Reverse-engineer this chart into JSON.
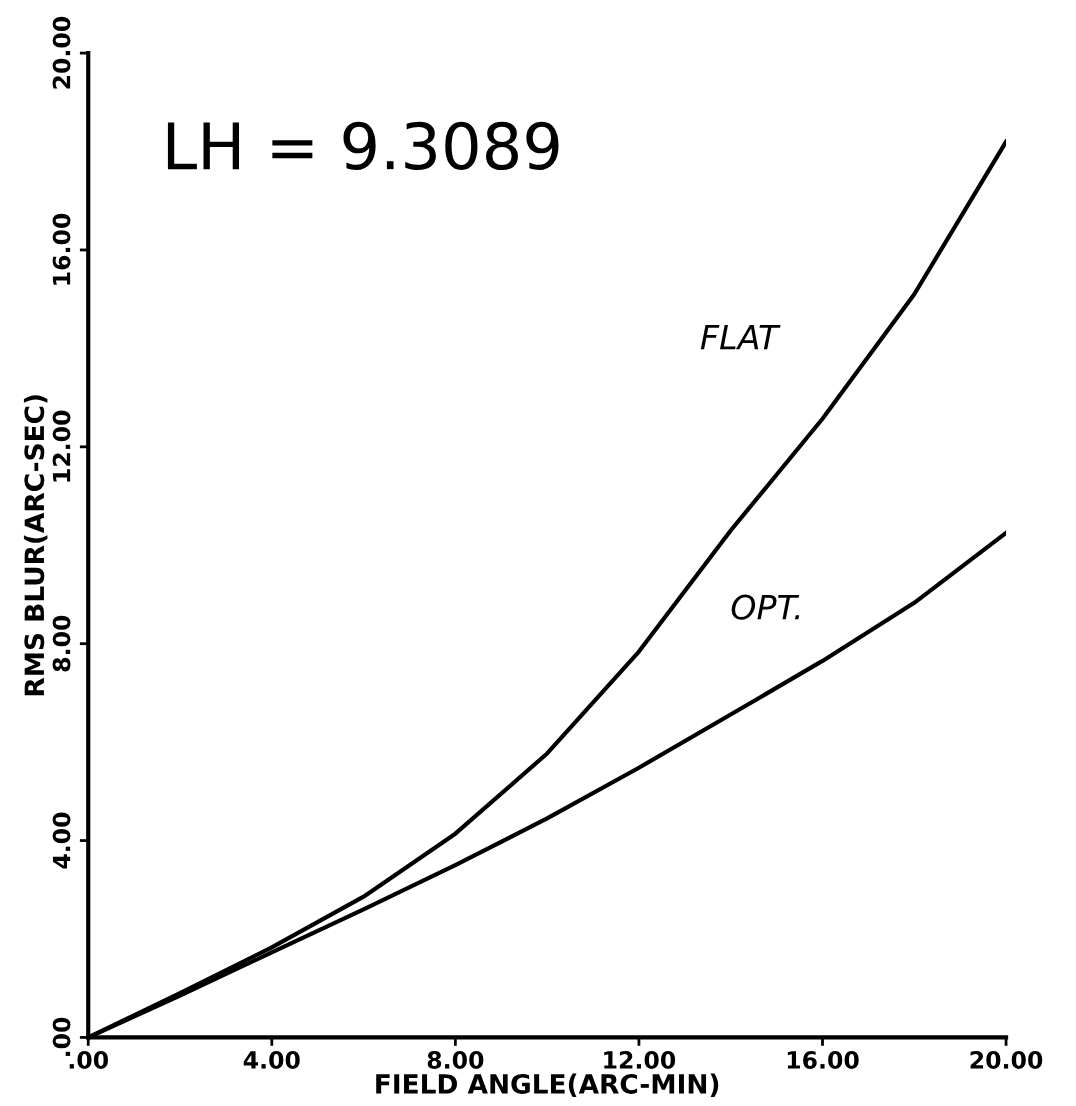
{
  "chart_data": {
    "type": "line",
    "xlabel": "FIELD ANGLE(ARC-MIN)",
    "ylabel": "RMS BLUR(ARC-SEC)",
    "annotations": [
      "LH = 9.3089"
    ],
    "xlim": [
      0,
      20
    ],
    "ylim": [
      0,
      20
    ],
    "xticks": [
      {
        "value": 0,
        "label": ".00"
      },
      {
        "value": 4,
        "label": "4.00"
      },
      {
        "value": 8,
        "label": "8.00"
      },
      {
        "value": 12,
        "label": "12.00"
      },
      {
        "value": 16,
        "label": "16.00"
      },
      {
        "value": 20,
        "label": "20.00"
      }
    ],
    "yticks": [
      {
        "value": 0,
        "label": ".00"
      },
      {
        "value": 4,
        "label": "4.00"
      },
      {
        "value": 8,
        "label": "8.00"
      },
      {
        "value": 12,
        "label": "12.00"
      },
      {
        "value": 16,
        "label": "16.00"
      },
      {
        "value": 20,
        "label": "20.00"
      }
    ],
    "grid": false,
    "marker": "none",
    "line_style": "solid",
    "series": [
      {
        "name": "FLAT",
        "color": "#000000",
        "x": [
          0,
          2,
          4,
          6,
          8,
          10,
          12,
          14,
          16,
          18,
          20
        ],
        "values": [
          0,
          0.9,
          1.83,
          2.86,
          4.14,
          5.77,
          7.84,
          10.3,
          12.57,
          15.1,
          18.2
        ]
      },
      {
        "name": "OPT.",
        "color": "#000000",
        "x": [
          0,
          2,
          4,
          6,
          8,
          10,
          12,
          14,
          16,
          18,
          20
        ],
        "values": [
          0,
          0.85,
          1.73,
          2.6,
          3.5,
          4.45,
          5.48,
          6.56,
          7.65,
          8.83,
          10.25
        ]
      }
    ]
  }
}
